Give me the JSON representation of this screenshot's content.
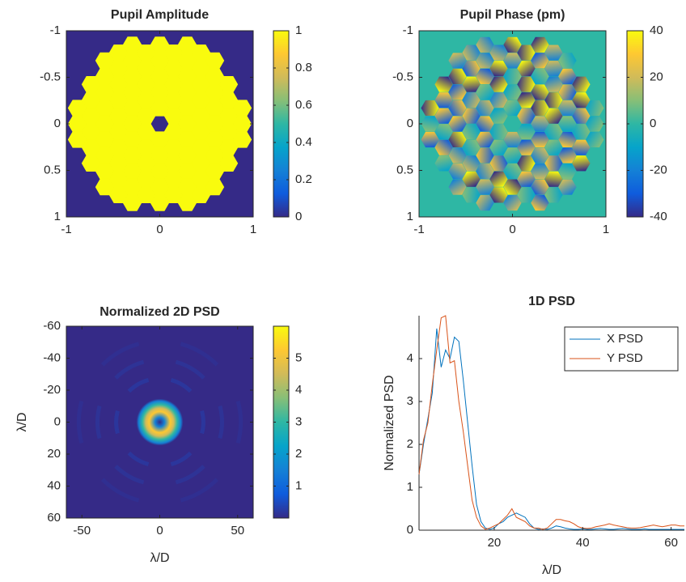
{
  "chart_data": [
    {
      "type": "image",
      "title": "Pupil Amplitude",
      "xlim": [
        -1,
        1
      ],
      "ylim": [
        -1,
        1
      ],
      "ydir": "reverse",
      "xticks": [
        -1,
        0,
        1
      ],
      "yticks": [
        -1,
        -0.5,
        0,
        0.5,
        1
      ],
      "colorbar": {
        "clim": [
          0,
          1
        ],
        "ticks": [
          0,
          0.2,
          0.4,
          0.6,
          0.8,
          1
        ]
      },
      "colormap": [
        "#352a87",
        "#0f5cdd",
        "#1481d6",
        "#06a4ca",
        "#2eb7a4",
        "#87bf77",
        "#d1bb59",
        "#fec832",
        "#f9fb0e"
      ]
    },
    {
      "type": "image",
      "title": "Pupil Phase (pm)",
      "xlim": [
        -1,
        1
      ],
      "ylim": [
        -1,
        1
      ],
      "ydir": "reverse",
      "xticks": [
        -1,
        0,
        1
      ],
      "yticks": [
        -1,
        -0.5,
        0,
        0.5,
        1
      ],
      "colorbar": {
        "clim": [
          -40,
          40
        ],
        "ticks": [
          -40,
          -20,
          0,
          20,
          40
        ]
      },
      "colormap": [
        "#352a87",
        "#0f5cdd",
        "#1481d6",
        "#06a4ca",
        "#2eb7a4",
        "#87bf77",
        "#d1bb59",
        "#fec832",
        "#f9fb0e"
      ]
    },
    {
      "type": "image",
      "title": "Normalized 2D PSD",
      "xlabel": "λ/D",
      "ylabel": "λ/D",
      "xlim": [
        -60,
        60
      ],
      "ylim": [
        -60,
        60
      ],
      "ydir": "reverse",
      "xticks": [
        -50,
        0,
        50
      ],
      "yticks": [
        -60,
        -40,
        -20,
        0,
        20,
        40,
        60
      ],
      "colorbar": {
        "clim": [
          0,
          6
        ],
        "ticks": [
          1,
          2,
          3,
          4,
          5
        ]
      },
      "colormap": [
        "#352a87",
        "#0f5cdd",
        "#1481d6",
        "#06a4ca",
        "#2eb7a4",
        "#87bf77",
        "#d1bb59",
        "#fec832",
        "#f9fb0e"
      ]
    },
    {
      "type": "line",
      "title": "1D PSD",
      "xlabel": "λ/D",
      "ylabel": "Normalized PSD",
      "xlim": [
        3,
        63
      ],
      "ylim": [
        0,
        5
      ],
      "xticks": [
        20,
        40,
        60
      ],
      "yticks": [
        0,
        1,
        2,
        3,
        4
      ],
      "legend": "northeast",
      "x": [
        3,
        4,
        5,
        6,
        7,
        8,
        9,
        10,
        11,
        12,
        13,
        14,
        15,
        16,
        17,
        18,
        19,
        20,
        21,
        22,
        23,
        24,
        25,
        26,
        27,
        28,
        29,
        30,
        31,
        32,
        33,
        34,
        35,
        36,
        37,
        38,
        39,
        40,
        41,
        42,
        43,
        44,
        45,
        46,
        47,
        48,
        49,
        50,
        51,
        52,
        53,
        54,
        55,
        56,
        57,
        58,
        59,
        60,
        61,
        62,
        63
      ],
      "series": [
        {
          "name": "X PSD",
          "color": "#0072bd",
          "values": [
            1.3,
            2.0,
            2.6,
            3.2,
            4.7,
            3.8,
            4.2,
            4.0,
            4.5,
            4.4,
            3.5,
            2.5,
            1.5,
            0.6,
            0.2,
            0.05,
            0.02,
            0.05,
            0.15,
            0.2,
            0.3,
            0.35,
            0.4,
            0.35,
            0.3,
            0.15,
            0.05,
            0.02,
            0.03,
            0.02,
            0.05,
            0.1,
            0.08,
            0.05,
            0.03,
            0.02,
            0.02,
            0.03,
            0.02,
            0.02,
            0.03,
            0.04,
            0.03,
            0.02,
            0.02,
            0.03,
            0.04,
            0.03,
            0.02,
            0.02,
            0.02,
            0.03,
            0.02,
            0.02,
            0.02,
            0.02,
            0.02,
            0.02,
            0.02,
            0.02,
            0.02
          ]
        },
        {
          "name": "Y PSD",
          "color": "#d95319",
          "values": [
            1.3,
            2.1,
            2.5,
            3.4,
            4.2,
            4.95,
            5.0,
            3.9,
            3.95,
            3.0,
            2.3,
            1.5,
            0.7,
            0.3,
            0.1,
            0.02,
            0.05,
            0.1,
            0.15,
            0.25,
            0.35,
            0.5,
            0.3,
            0.25,
            0.2,
            0.1,
            0.05,
            0.05,
            0.02,
            0.05,
            0.15,
            0.25,
            0.25,
            0.22,
            0.2,
            0.15,
            0.08,
            0.05,
            0.04,
            0.05,
            0.08,
            0.1,
            0.12,
            0.15,
            0.12,
            0.1,
            0.08,
            0.06,
            0.05,
            0.05,
            0.06,
            0.08,
            0.1,
            0.12,
            0.1,
            0.08,
            0.1,
            0.12,
            0.12,
            0.1,
            0.1
          ]
        }
      ]
    }
  ]
}
